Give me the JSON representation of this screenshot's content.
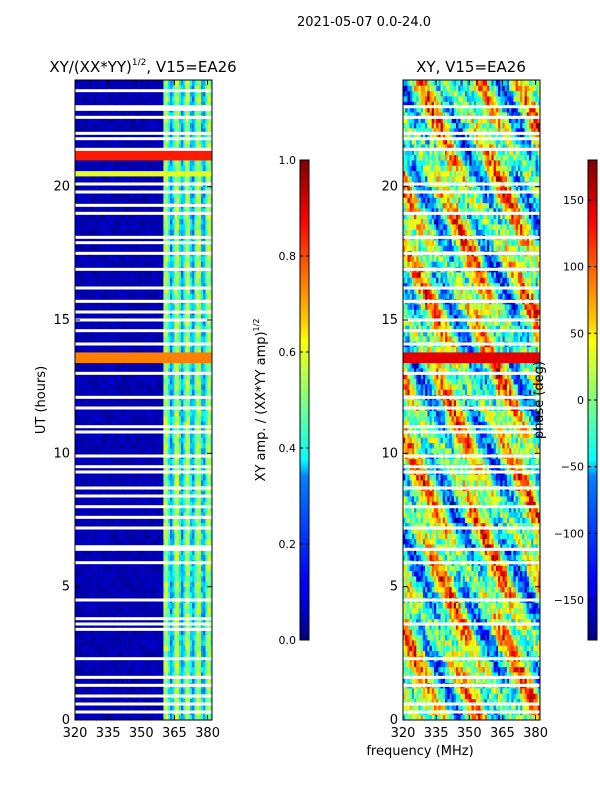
{
  "suptitle": "2021-05-07 0.0-24.0",
  "colors": {
    "background": "#ffffff",
    "axis": "#000000",
    "flag_row": "#ffffff",
    "jet_low": "#000080",
    "jet_high": "#800000"
  },
  "chart_data": [
    {
      "type": "heatmap",
      "title_main": "XY/(XX*YY)",
      "title_sup": "1/2",
      "title_tail": ", V15=EA26",
      "xlabel": "",
      "ylabel": "UT (hours)",
      "xlim": [
        320,
        382
      ],
      "ylim": [
        0,
        24
      ],
      "xticks": [
        320,
        335,
        350,
        365,
        380
      ],
      "yticks": [
        0,
        5,
        10,
        15,
        20
      ],
      "colorbar": {
        "label": "XY amp. / (XX*YY amp)",
        "label_sup": "1/2",
        "range": [
          0.0,
          1.0
        ],
        "ticks": [
          "0.0",
          "0.2",
          "0.4",
          "0.6",
          "0.8",
          "1.0"
        ],
        "tick_values": [
          0.0,
          0.2,
          0.4,
          0.6,
          0.8,
          1.0
        ]
      },
      "band_edge_mhz": 360,
      "flagged_hours": [
        0.3,
        0.6,
        0.9,
        1.3,
        1.6,
        2.3,
        3.4,
        3.6,
        3.8,
        4.5,
        5.9,
        6.4,
        6.5,
        7.2,
        7.6,
        8.0,
        8.4,
        8.7,
        9.3,
        9.5,
        9.9,
        10.8,
        11.0,
        11.7,
        12.1,
        13.0,
        14.1,
        14.6,
        15.0,
        15.3,
        15.7,
        16.2,
        16.9,
        17.5,
        17.9,
        18.1,
        19.0,
        19.3,
        19.8,
        20.1,
        21.4,
        21.8,
        22.0,
        22.6,
        22.9,
        23.0,
        23.6
      ],
      "hot_rows": [
        {
          "hour": 13.6,
          "level": 0.75
        },
        {
          "hour": 21.2,
          "level": 0.85
        },
        {
          "hour": 20.5,
          "level": 0.6
        }
      ]
    },
    {
      "type": "heatmap",
      "title_main": "XY, V15=EA26",
      "xlabel": "frequency (MHz)",
      "ylabel": "",
      "xlim": [
        320,
        382
      ],
      "ylim": [
        0,
        24
      ],
      "xticks": [
        320,
        335,
        350,
        365,
        380
      ],
      "yticks": [
        0,
        5,
        10,
        15,
        20
      ],
      "colorbar": {
        "label": "phase (deg)",
        "range": [
          -180,
          180
        ],
        "ticks": [
          "150",
          "100",
          "50",
          "0",
          "−50",
          "−100",
          "−150"
        ],
        "tick_values": [
          150,
          100,
          50,
          0,
          -50,
          -100,
          -150
        ]
      },
      "flagged_hours": [
        0.3,
        0.6,
        1.3,
        1.6,
        2.3,
        3.6,
        4.5,
        5.9,
        6.4,
        7.2,
        8.0,
        8.7,
        9.3,
        9.5,
        9.9,
        10.8,
        11.0,
        11.7,
        12.1,
        13.0,
        14.1,
        14.6,
        15.0,
        15.7,
        16.2,
        16.9,
        17.5,
        18.1,
        19.0,
        19.8,
        20.1,
        21.4,
        21.8,
        22.0,
        22.6,
        23.0
      ],
      "hot_rows": [
        {
          "hour": 13.6,
          "level": 0.9
        }
      ]
    }
  ]
}
